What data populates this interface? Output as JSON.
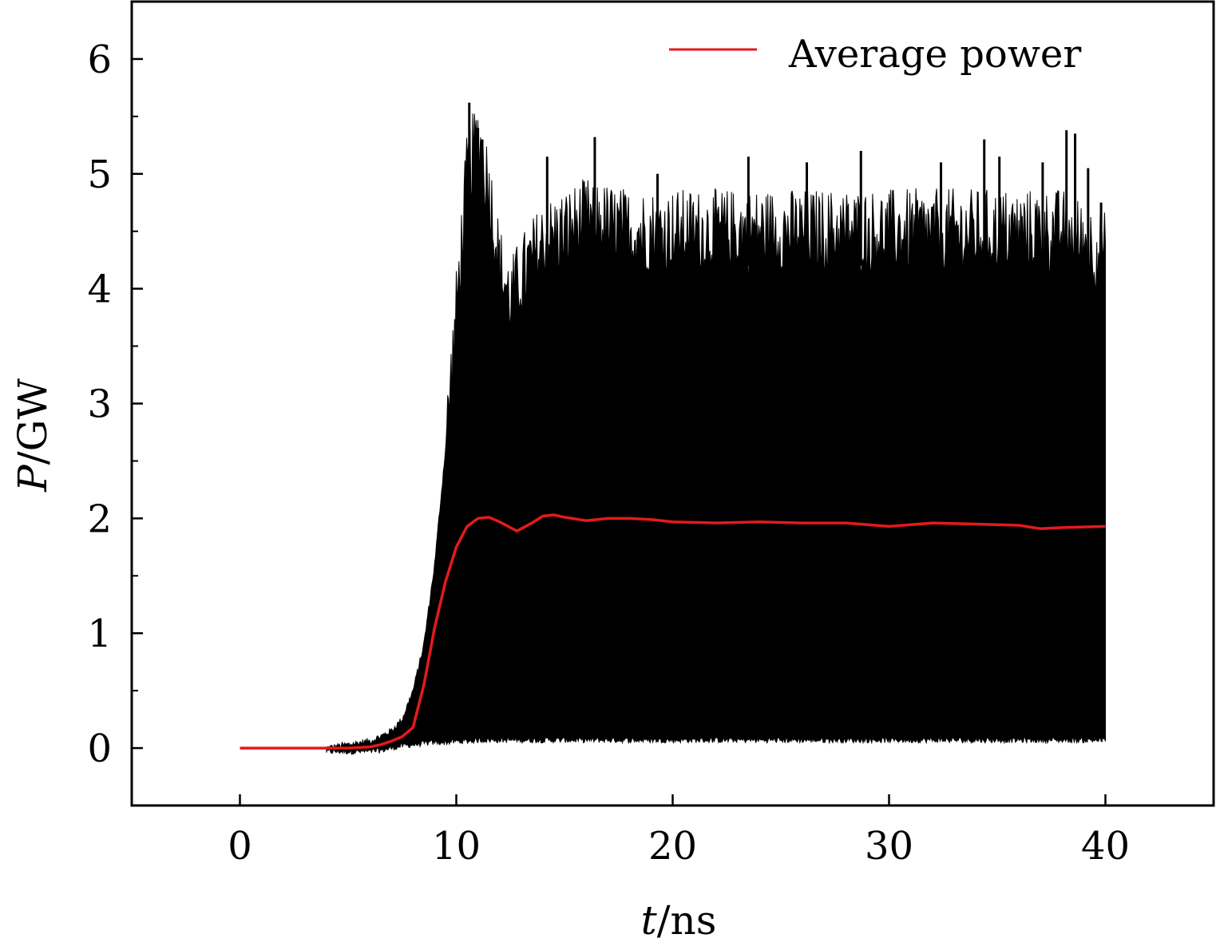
{
  "chart_data": {
    "type": "line",
    "title": "",
    "xlabel": {
      "var": "t",
      "unit": "/ns"
    },
    "ylabel": {
      "var": "P",
      "unit": "/GW"
    },
    "xlim": [
      -5,
      45
    ],
    "ylim": [
      -0.5,
      6.5
    ],
    "x_ticks": [
      0,
      10,
      20,
      30,
      40
    ],
    "y_ticks": [
      0,
      1,
      2,
      3,
      4,
      5,
      6
    ],
    "x_tick_labels": [
      "0",
      "10",
      "20",
      "30",
      "40"
    ],
    "y_tick_labels": [
      "0",
      "1",
      "2",
      "3",
      "4",
      "5",
      "6"
    ],
    "grid": false,
    "legend": {
      "position": "top-right",
      "entries": [
        "Average power"
      ]
    },
    "series": [
      {
        "name": "",
        "color": "#000000",
        "style": "filled oscillation envelope",
        "x": [
          4,
          5,
          6,
          6.5,
          7,
          7.5,
          8,
          8.5,
          9,
          9.5,
          10,
          10.5,
          11,
          11.5,
          12,
          12.5,
          13,
          14,
          15,
          16,
          18,
          20,
          22,
          25,
          28,
          30,
          32,
          35,
          38,
          40
        ],
        "upper": [
          0.0,
          0.03,
          0.06,
          0.1,
          0.15,
          0.25,
          0.5,
          0.9,
          1.6,
          2.6,
          3.8,
          5.0,
          5.3,
          4.9,
          4.2,
          3.9,
          4.1,
          4.4,
          4.5,
          4.6,
          4.5,
          4.5,
          4.5,
          4.5,
          4.5,
          4.5,
          4.5,
          4.5,
          4.5,
          4.3
        ],
        "lower": [
          -0.03,
          -0.03,
          -0.03,
          -0.02,
          0.0,
          0.02,
          0.03,
          0.04,
          0.05,
          0.05,
          0.06,
          0.06,
          0.07,
          0.07,
          0.07,
          0.07,
          0.07,
          0.07,
          0.07,
          0.07,
          0.07,
          0.07,
          0.07,
          0.07,
          0.07,
          0.07,
          0.07,
          0.07,
          0.07,
          0.07
        ],
        "spikes": [
          [
            10.6,
            5.62
          ],
          [
            11.0,
            5.4
          ],
          [
            11.2,
            5.3
          ],
          [
            14.2,
            5.15
          ],
          [
            16.4,
            5.32
          ],
          [
            19.3,
            5.0
          ],
          [
            23.5,
            5.15
          ],
          [
            26.2,
            5.1
          ],
          [
            28.7,
            5.2
          ],
          [
            32.4,
            5.1
          ],
          [
            34.4,
            5.3
          ],
          [
            35.1,
            5.15
          ],
          [
            37.1,
            5.1
          ],
          [
            38.2,
            5.38
          ],
          [
            38.6,
            5.35
          ],
          [
            39.2,
            5.05
          ],
          [
            39.8,
            4.75
          ]
        ]
      },
      {
        "name": "Average power",
        "color": "#e31a1c",
        "x": [
          0,
          4,
          5,
          6,
          6.5,
          7,
          7.5,
          8,
          8.5,
          9,
          9.5,
          10,
          10.5,
          11,
          11.5,
          12,
          12.5,
          12.8,
          13.5,
          14,
          14.5,
          15,
          16,
          17,
          18,
          19,
          20,
          22,
          24,
          26,
          28,
          30,
          32,
          34,
          36,
          37,
          38,
          40
        ],
        "values": [
          0.0,
          0.0,
          0.0,
          0.01,
          0.03,
          0.06,
          0.1,
          0.18,
          0.55,
          1.05,
          1.45,
          1.75,
          1.93,
          2.0,
          2.01,
          1.97,
          1.92,
          1.89,
          1.96,
          2.02,
          2.03,
          2.01,
          1.98,
          2.0,
          2.0,
          1.99,
          1.97,
          1.96,
          1.97,
          1.96,
          1.96,
          1.93,
          1.96,
          1.95,
          1.94,
          1.91,
          1.92,
          1.93
        ]
      }
    ]
  }
}
